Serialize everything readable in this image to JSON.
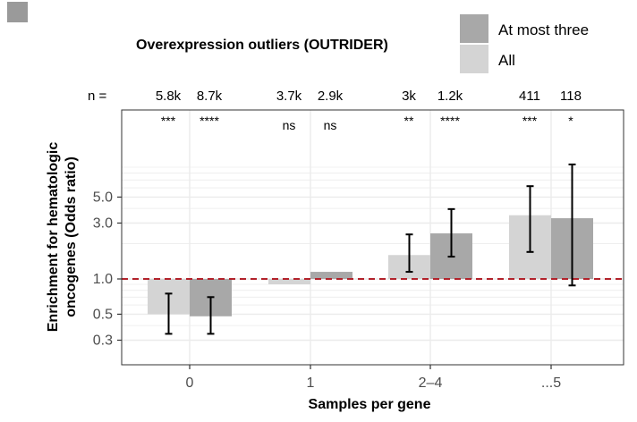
{
  "colors": {
    "all": "#d4d4d4",
    "at_most_three": "#a8a8a8",
    "corner_mark": "#9a9a9a",
    "grid": "#ebebeb",
    "panel_border": "#333333",
    "reference_line": "#b2222b",
    "error_bar": "#000000"
  },
  "chart_data": {
    "type": "bar",
    "title": "Overexpression outliers (OUTRIDER)",
    "xlabel": "Samples per gene",
    "ylabel": "Enrichment for hematologic oncogenes (Odds ratio)",
    "ylabel_lines": [
      "Enrichment for hematologic",
      "oncogenes (Odds ratio)"
    ],
    "y_scale": "log",
    "ylim": [
      0.25,
      14
    ],
    "yticks": [
      0.3,
      0.5,
      1.0,
      3.0,
      5.0
    ],
    "ytick_labels": [
      "0.3",
      "0.5",
      "1.0",
      "3.0",
      "5.0"
    ],
    "reference_line": 1.0,
    "categories": [
      "0",
      "1",
      "2–4",
      "...5"
    ],
    "n_prefix": "n =",
    "legend_position": "top-right",
    "series": [
      {
        "name": "All",
        "color_key": "all",
        "values": [
          0.5,
          0.9,
          1.6,
          3.5
        ],
        "ci_low": [
          0.34,
          null,
          1.15,
          1.7
        ],
        "ci_high": [
          0.75,
          null,
          2.4,
          6.2
        ],
        "n": [
          "5.8k",
          "3.7k",
          "3k",
          "411"
        ],
        "significance": [
          "***",
          "ns",
          "**",
          "***"
        ]
      },
      {
        "name": "At most three",
        "color_key": "at_most_three",
        "values": [
          0.48,
          1.15,
          2.45,
          3.3
        ],
        "ci_low": [
          0.34,
          null,
          1.55,
          0.88
        ],
        "ci_high": [
          0.7,
          null,
          3.95,
          9.5
        ],
        "n": [
          "8.7k",
          "2.9k",
          "1.2k",
          "118"
        ],
        "significance": [
          "****",
          "ns",
          "****",
          "*"
        ]
      }
    ]
  }
}
